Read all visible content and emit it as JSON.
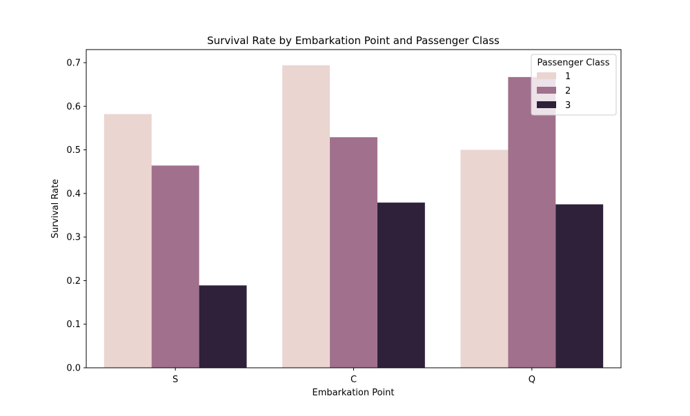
{
  "chart_data": {
    "type": "bar",
    "title": "Survival Rate by Embarkation Point and Passenger Class",
    "xlabel": "Embarkation Point",
    "ylabel": "Survival Rate",
    "categories": [
      "S",
      "C",
      "Q"
    ],
    "ylim": [
      0,
      0.73
    ],
    "yticks": [
      0.0,
      0.1,
      0.2,
      0.3,
      0.4,
      0.5,
      0.6,
      0.7
    ],
    "ytick_labels": [
      "0.0",
      "0.1",
      "0.2",
      "0.3",
      "0.4",
      "0.5",
      "0.6",
      "0.7"
    ],
    "grid": false,
    "legend": {
      "title": "Passenger Class",
      "placement": "top-right"
    },
    "series": [
      {
        "name": "1",
        "color": "#ead5d1",
        "values": [
          0.582,
          0.694,
          0.5
        ]
      },
      {
        "name": "2",
        "color": "#a1708c",
        "values": [
          0.464,
          0.529,
          0.667
        ]
      },
      {
        "name": "3",
        "color": "#2e2139",
        "values": [
          0.189,
          0.379,
          0.375
        ]
      }
    ]
  }
}
